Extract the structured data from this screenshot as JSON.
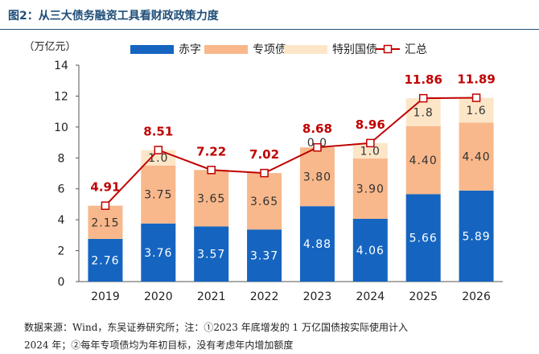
{
  "figure_title": "图2：从三大债务融资工具看财政政策力度",
  "source_line1": "数据来源：Wind，东吴证券研究所；注：①2023 年底增发的 1 万亿国债按实际使用计入",
  "source_line2": "2024 年；②每年专项债均为年初目标，没有考虑年内增加额度",
  "colors": {
    "deficit": "#1565c0",
    "special_bond": "#f8b88b",
    "special_treasury": "#fde6c8",
    "total": "#c00000",
    "data_label_total": "#c00000"
  },
  "chart_data": {
    "type": "bar",
    "stacked": true,
    "unit_label": "（万亿元）",
    "categories": [
      "2019",
      "2020",
      "2021",
      "2022",
      "2023",
      "2024",
      "2025",
      "2026"
    ],
    "series": [
      {
        "name": "赤字",
        "values": [
          2.76,
          3.76,
          3.57,
          3.37,
          4.88,
          4.06,
          5.66,
          5.89
        ],
        "labels": [
          "2.76",
          "3.76",
          "3.57",
          "3.37",
          "4.88",
          "4.06",
          "5.66",
          "5.89"
        ]
      },
      {
        "name": "专项债",
        "values": [
          2.15,
          3.75,
          3.65,
          3.65,
          3.8,
          3.9,
          4.4,
          4.4
        ],
        "labels": [
          "2.15",
          "3.75",
          "3.65",
          "3.65",
          "3.80",
          "3.90",
          "4.40",
          "4.40"
        ]
      },
      {
        "name": "特别国债",
        "values": [
          0,
          1.0,
          0,
          0,
          0,
          1.0,
          1.8,
          1.6
        ],
        "labels": [
          "",
          "1.0",
          "",
          "",
          "0.0",
          "1.0",
          "1.8",
          "1.6"
        ]
      }
    ],
    "line_series": {
      "name": "汇总",
      "values": [
        4.91,
        8.51,
        7.22,
        7.02,
        8.68,
        8.96,
        11.86,
        11.89
      ],
      "labels": [
        "4.91",
        "8.51",
        "7.22",
        "7.02",
        "8.68",
        "8.96",
        "11.86",
        "11.89"
      ]
    },
    "ylim": [
      0,
      14
    ],
    "yticks": [
      "0",
      "2",
      "4",
      "6",
      "8",
      "10",
      "12",
      "14"
    ],
    "legend_position": "top"
  }
}
